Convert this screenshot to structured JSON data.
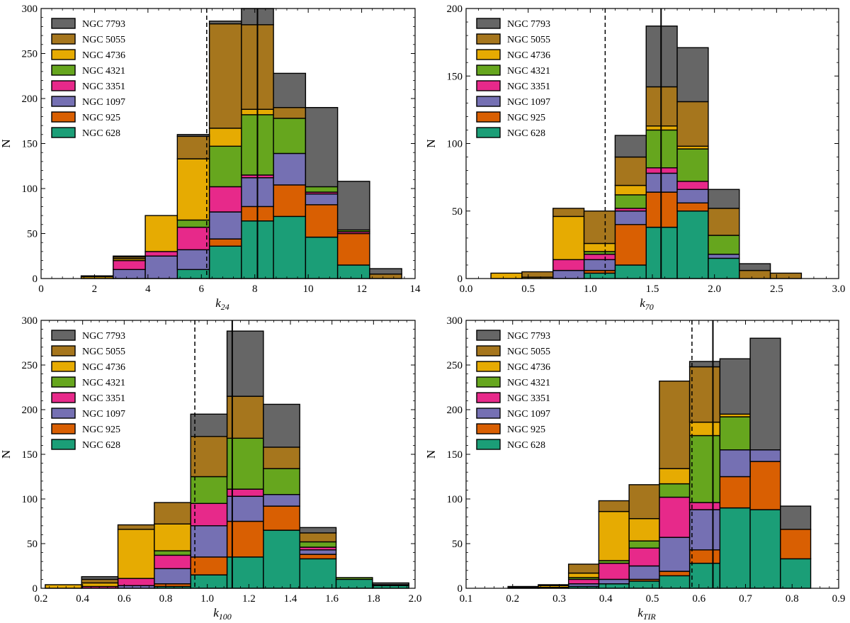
{
  "legend": [
    {
      "label": "NGC 7793",
      "color": "#666666"
    },
    {
      "label": "NGC 5055",
      "color": "#A6761D"
    },
    {
      "label": "NGC 4736",
      "color": "#E6AB02"
    },
    {
      "label": "NGC 4321",
      "color": "#66A61E"
    },
    {
      "label": "NGC 3351",
      "color": "#E7298A"
    },
    {
      "label": "NGC 1097",
      "color": "#7570B3"
    },
    {
      "label": "NGC 925",
      "color": "#D95F02"
    },
    {
      "label": "NGC 628",
      "color": "#1B9E77"
    }
  ],
  "chart_data": [
    {
      "type": "stacked-histogram",
      "panel": "k24",
      "xlabel_base": "k",
      "xlabel_sub": "24",
      "ylabel": "N",
      "xlim": [
        0,
        14
      ],
      "ylim": [
        0,
        300
      ],
      "xticks": [
        0,
        2,
        4,
        6,
        8,
        10,
        12,
        14
      ],
      "xtick_labels": [
        "0",
        "2",
        "4",
        "6",
        "8",
        "10",
        "12",
        "14"
      ],
      "yticks": [
        0,
        50,
        100,
        150,
        200,
        250,
        300
      ],
      "ytick_labels": [
        "0",
        "50",
        "100",
        "150",
        "200",
        "250",
        "300"
      ],
      "median_line": 8.1,
      "dashed_line": 6.2,
      "bin_edges": [
        1.5,
        2.7,
        3.9,
        5.1,
        6.3,
        7.5,
        8.7,
        9.9,
        11.1,
        12.3,
        13.5
      ],
      "series": [
        {
          "name": "NGC 628",
          "values": [
            0,
            0,
            0,
            10,
            36,
            64,
            69,
            46,
            15,
            0
          ]
        },
        {
          "name": "NGC 925",
          "values": [
            0,
            0,
            0,
            0,
            8,
            16,
            35,
            36,
            35,
            0
          ]
        },
        {
          "name": "NGC 1097",
          "values": [
            0,
            10,
            25,
            22,
            30,
            32,
            35,
            12,
            0,
            0
          ]
        },
        {
          "name": "NGC 3351",
          "values": [
            0,
            10,
            5,
            25,
            28,
            3,
            0,
            2,
            2,
            0
          ]
        },
        {
          "name": "NGC 4321",
          "values": [
            0,
            0,
            0,
            8,
            45,
            67,
            39,
            6,
            2,
            0
          ]
        },
        {
          "name": "NGC 4736",
          "values": [
            2,
            2,
            40,
            68,
            20,
            6,
            0,
            0,
            0,
            0
          ]
        },
        {
          "name": "NGC 5055",
          "values": [
            1,
            2,
            0,
            25,
            116,
            94,
            12,
            0,
            0,
            5
          ]
        },
        {
          "name": "NGC 7793",
          "values": [
            0,
            1,
            0,
            2,
            3,
            18,
            38,
            88,
            54,
            6
          ]
        }
      ]
    },
    {
      "type": "stacked-histogram",
      "panel": "k70",
      "xlabel_base": "k",
      "xlabel_sub": "70",
      "ylabel": "N",
      "xlim": [
        0,
        3
      ],
      "ylim": [
        0,
        200
      ],
      "xticks": [
        0,
        0.5,
        1,
        1.5,
        2,
        2.5,
        3
      ],
      "xtick_labels": [
        "0.0",
        "0.5",
        "1.0",
        "1.5",
        "2.0",
        "2.5",
        "3.0"
      ],
      "yticks": [
        0,
        50,
        100,
        150,
        200
      ],
      "ytick_labels": [
        "0",
        "50",
        "100",
        "150",
        "200"
      ],
      "median_line": 1.57,
      "dashed_line": 1.12,
      "bin_edges": [
        0.2,
        0.45,
        0.7,
        0.95,
        1.2,
        1.45,
        1.7,
        1.95,
        2.2,
        2.45,
        2.7
      ],
      "series": [
        {
          "name": "NGC 628",
          "values": [
            0,
            0,
            0,
            4,
            10,
            38,
            50,
            15,
            0,
            0
          ]
        },
        {
          "name": "NGC 925",
          "values": [
            0,
            0,
            0,
            2,
            30,
            26,
            6,
            0,
            0,
            0
          ]
        },
        {
          "name": "NGC 1097",
          "values": [
            0,
            0,
            6,
            8,
            10,
            14,
            10,
            3,
            0,
            0
          ]
        },
        {
          "name": "NGC 3351",
          "values": [
            0,
            0,
            8,
            4,
            2,
            4,
            6,
            0,
            0,
            0
          ]
        },
        {
          "name": "NGC 4321",
          "values": [
            0,
            0,
            0,
            2,
            10,
            28,
            24,
            14,
            0,
            0
          ]
        },
        {
          "name": "NGC 4736",
          "values": [
            4,
            1,
            32,
            6,
            7,
            3,
            2,
            0,
            0,
            0
          ]
        },
        {
          "name": "NGC 5055",
          "values": [
            0,
            4,
            6,
            24,
            21,
            29,
            33,
            20,
            6,
            4
          ]
        },
        {
          "name": "NGC 7793",
          "values": [
            0,
            0,
            0,
            0,
            16,
            45,
            40,
            14,
            5,
            0
          ]
        }
      ]
    },
    {
      "type": "stacked-histogram",
      "panel": "k100",
      "xlabel_base": "k",
      "xlabel_sub": "100",
      "ylabel": "N",
      "xlim": [
        0.2,
        2.0
      ],
      "ylim": [
        0,
        300
      ],
      "xticks": [
        0.2,
        0.4,
        0.6,
        0.8,
        1.0,
        1.2,
        1.4,
        1.6,
        1.8,
        2.0
      ],
      "xtick_labels": [
        "0.2",
        "0.4",
        "0.6",
        "0.8",
        "1.0",
        "1.2",
        "1.4",
        "1.6",
        "1.8",
        "2.0"
      ],
      "yticks": [
        0,
        50,
        100,
        150,
        200,
        250,
        300
      ],
      "ytick_labels": [
        "0",
        "50",
        "100",
        "150",
        "200",
        "250",
        "300"
      ],
      "median_line": 1.12,
      "dashed_line": 0.94,
      "bin_edges": [
        0.22,
        0.395,
        0.57,
        0.745,
        0.92,
        1.095,
        1.27,
        1.445,
        1.62,
        1.795,
        1.97
      ],
      "series": [
        {
          "name": "NGC 628",
          "values": [
            0,
            0,
            0,
            2,
            15,
            35,
            65,
            33,
            10,
            3
          ]
        },
        {
          "name": "NGC 925",
          "values": [
            0,
            0,
            0,
            3,
            20,
            40,
            27,
            5,
            0,
            0
          ]
        },
        {
          "name": "NGC 1097",
          "values": [
            0,
            0,
            3,
            17,
            35,
            28,
            13,
            5,
            0,
            0
          ]
        },
        {
          "name": "NGC 3351",
          "values": [
            0,
            2,
            8,
            15,
            25,
            8,
            0,
            3,
            0,
            0
          ]
        },
        {
          "name": "NGC 4321",
          "values": [
            0,
            0,
            0,
            5,
            30,
            57,
            29,
            6,
            2,
            1
          ]
        },
        {
          "name": "NGC 4736",
          "values": [
            4,
            4,
            55,
            30,
            0,
            0,
            0,
            0,
            0,
            0
          ]
        },
        {
          "name": "NGC 5055",
          "values": [
            0,
            4,
            5,
            24,
            45,
            47,
            24,
            10,
            0,
            0
          ]
        },
        {
          "name": "NGC 7793",
          "values": [
            0,
            3,
            0,
            0,
            25,
            73,
            48,
            6,
            0,
            2
          ]
        }
      ]
    },
    {
      "type": "stacked-histogram",
      "panel": "kTIR",
      "xlabel_base": "k",
      "xlabel_sub": "TIR",
      "ylabel": "N",
      "xlim": [
        0.1,
        0.9
      ],
      "ylim": [
        0,
        300
      ],
      "xticks": [
        0.1,
        0.2,
        0.3,
        0.4,
        0.5,
        0.6,
        0.7,
        0.8,
        0.9
      ],
      "xtick_labels": [
        "0.1",
        "0.2",
        "0.3",
        "0.4",
        "0.5",
        "0.6",
        "0.7",
        "0.8",
        "0.9"
      ],
      "yticks": [
        0,
        50,
        100,
        150,
        200,
        250,
        300
      ],
      "ytick_labels": [
        "0",
        "50",
        "100",
        "150",
        "200",
        "250",
        "300"
      ],
      "median_line": 0.63,
      "dashed_line": 0.585,
      "bin_edges": [
        0.19,
        0.255,
        0.32,
        0.385,
        0.45,
        0.515,
        0.58,
        0.645,
        0.71,
        0.775,
        0.84
      ],
      "series": [
        {
          "name": "NGC 628",
          "values": [
            0,
            0,
            2,
            5,
            8,
            14,
            28,
            90,
            88,
            33
          ]
        },
        {
          "name": "NGC 925",
          "values": [
            0,
            0,
            0,
            0,
            2,
            5,
            15,
            35,
            54,
            33
          ]
        },
        {
          "name": "NGC 1097",
          "values": [
            0,
            0,
            3,
            5,
            15,
            38,
            45,
            30,
            13,
            0
          ]
        },
        {
          "name": "NGC 3351",
          "values": [
            0,
            1,
            5,
            18,
            20,
            45,
            8,
            0,
            0,
            0
          ]
        },
        {
          "name": "NGC 4321",
          "values": [
            0,
            0,
            2,
            3,
            8,
            15,
            75,
            37,
            0,
            0
          ]
        },
        {
          "name": "NGC 4736",
          "values": [
            1,
            2,
            5,
            55,
            25,
            17,
            15,
            3,
            0,
            0
          ]
        },
        {
          "name": "NGC 5055",
          "values": [
            1,
            1,
            10,
            12,
            38,
            98,
            62,
            0,
            0,
            0
          ]
        },
        {
          "name": "NGC 7793",
          "values": [
            0,
            0,
            0,
            0,
            0,
            0,
            6,
            62,
            125,
            26
          ]
        }
      ]
    }
  ]
}
